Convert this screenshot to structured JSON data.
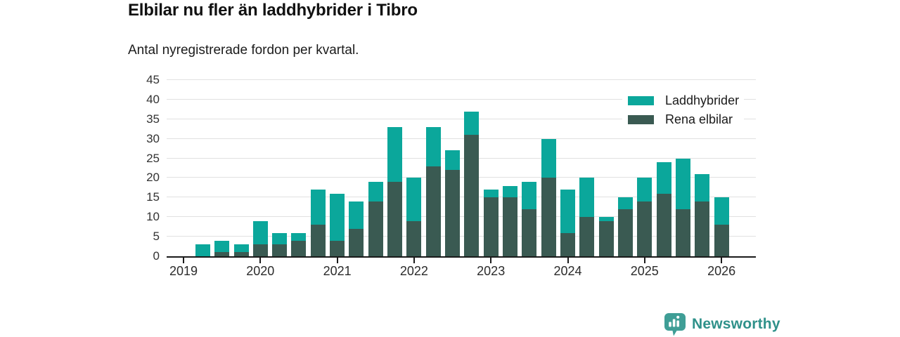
{
  "title": "Elbilar nu fler än laddhybrider i Tibro",
  "subtitle": "Antal nyregistrerade fordon per kvartal.",
  "colors": {
    "hybrid_teal": "#0ba79b",
    "electric_dark": "#3a5a52",
    "gridline": "#e1e1e1",
    "axis": "#1a1a1a",
    "brand_badge": "#3f9e96",
    "brand_text": "#2f918a"
  },
  "legend": {
    "items": [
      {
        "label": "Laddhybrider",
        "color": "#0ba79b"
      },
      {
        "label": "Rena elbilar",
        "color": "#3a5a52"
      }
    ]
  },
  "branding": {
    "logo_text": "Newsworthy"
  },
  "chart_data": {
    "type": "bar",
    "stacked": true,
    "title": "Elbilar nu fler än laddhybrider i Tibro",
    "subtitle": "Antal nyregistrerade fordon per kvartal.",
    "x": [
      "2019-Q2",
      "2019-Q3",
      "2019-Q4",
      "2020-Q1",
      "2020-Q2",
      "2020-Q3",
      "2020-Q4",
      "2021-Q1",
      "2021-Q2",
      "2021-Q3",
      "2021-Q4",
      "2022-Q1",
      "2022-Q2",
      "2022-Q3",
      "2022-Q4",
      "2023-Q1",
      "2023-Q2",
      "2023-Q3",
      "2023-Q4",
      "2024-Q1",
      "2024-Q2",
      "2024-Q3",
      "2024-Q4",
      "2025-Q1",
      "2025-Q2",
      "2025-Q3",
      "2025-Q4",
      "2026-Q1"
    ],
    "series": [
      {
        "name": "Rena elbilar",
        "color": "#3a5a52",
        "values": [
          0,
          1,
          1,
          3,
          3,
          4,
          8,
          4,
          7,
          14,
          19,
          9,
          23,
          22,
          31,
          15,
          15,
          12,
          20,
          6,
          10,
          9,
          12,
          14,
          16,
          12,
          14,
          8
        ]
      },
      {
        "name": "Laddhybrider",
        "color": "#0ba79b",
        "values": [
          3,
          3,
          2,
          6,
          3,
          2,
          9,
          12,
          7,
          5,
          14,
          11,
          10,
          5,
          6,
          2,
          3,
          7,
          10,
          11,
          10,
          1,
          3,
          6,
          8,
          13,
          7,
          7
        ]
      }
    ],
    "totals": [
      3,
      4,
      3,
      9,
      6,
      6,
      17,
      16,
      14,
      19,
      33,
      20,
      33,
      27,
      37,
      17,
      18,
      19,
      30,
      17,
      20,
      10,
      15,
      20,
      24,
      25,
      21,
      15
    ],
    "ylim": [
      0,
      45
    ],
    "yticks": [
      0,
      5,
      10,
      15,
      20,
      25,
      30,
      35,
      40,
      45
    ],
    "xticks": [
      "2019",
      "2020",
      "2021",
      "2022",
      "2023",
      "2024",
      "2025",
      "2026"
    ],
    "grid": true,
    "legend_position": "top-right"
  }
}
